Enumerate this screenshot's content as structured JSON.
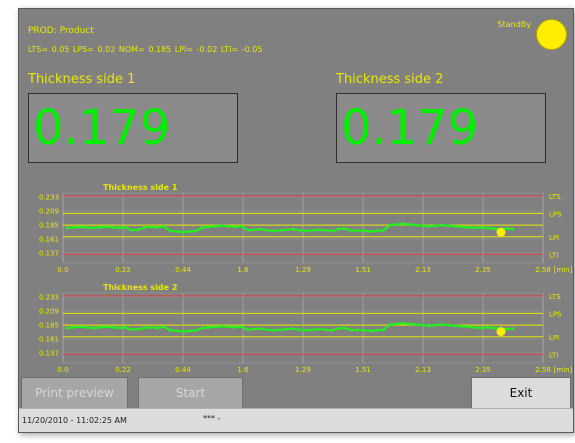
{
  "header": {
    "product": "PROD: Product",
    "limits_line": "LTS= 0.05   LPS= 0.02   NOM= 0.185   LPI= -0.02   LTI= -0.05",
    "status": "StandBy",
    "status_color": "#ffee00"
  },
  "sides": [
    {
      "title": "Thickness side 1",
      "value": "0.179"
    },
    {
      "title": "Thickness side 2",
      "value": "0.179"
    }
  ],
  "chart_data": [
    {
      "type": "line",
      "title": "Thickness side 1",
      "x_ticks": [
        "0.0",
        "0.22",
        "0.44",
        "1.6",
        "1.29",
        "1.51",
        "2.13",
        "2.35",
        "2.58"
      ],
      "x_unit": "[min]",
      "y_ticks": [
        "0.233",
        "0.209",
        "0.185",
        "0.161",
        "0.137"
      ],
      "ylim": [
        0.12,
        0.24
      ],
      "ref_lines": [
        {
          "label": "LTS",
          "value": 0.235,
          "color": "#e04040"
        },
        {
          "label": "LPS",
          "value": 0.205,
          "color": "#e8e800"
        },
        {
          "label": "NOM",
          "value": 0.185,
          "color": "#e8e800"
        },
        {
          "label": "LPI",
          "value": 0.165,
          "color": "#e8e800"
        },
        {
          "label": "LTI",
          "value": 0.135,
          "color": "#e04040"
        }
      ],
      "series": [
        {
          "values": [
            0.18,
            0.181,
            0.182,
            0.181,
            0.18,
            0.181,
            0.182,
            0.181,
            0.18,
            0.181,
            0.176,
            0.177,
            0.181,
            0.182,
            0.181,
            0.183,
            0.175,
            0.174,
            0.173,
            0.174,
            0.175,
            0.181,
            0.182,
            0.183,
            0.184,
            0.183,
            0.182,
            0.183,
            0.176,
            0.177,
            0.178,
            0.176,
            0.175,
            0.176,
            0.177,
            0.178,
            0.176,
            0.175,
            0.176,
            0.177,
            0.176,
            0.175,
            0.178,
            0.179,
            0.175,
            0.176,
            0.175,
            0.174,
            0.175,
            0.176,
            0.185,
            0.186,
            0.187,
            0.186,
            0.185,
            0.184,
            0.183,
            0.184,
            0.185,
            0.184,
            0.183,
            0.182,
            0.181,
            0.18,
            0.181,
            0.18,
            0.179,
            0.178,
            0.179,
            0.178
          ]
        }
      ]
    },
    {
      "type": "line",
      "title": "Thickness side 2",
      "x_ticks": [
        "0.0",
        "0.22",
        "0.44",
        "1.6",
        "1.29",
        "1.51",
        "2.13",
        "2.35",
        "2.58"
      ],
      "x_unit": "[min]",
      "y_ticks": [
        "0.233",
        "0.209",
        "0.185",
        "0.161",
        "0.137"
      ],
      "ylim": [
        0.12,
        0.24
      ],
      "ref_lines": [
        {
          "label": "LTS",
          "value": 0.235,
          "color": "#e04040"
        },
        {
          "label": "LPS",
          "value": 0.205,
          "color": "#e8e800"
        },
        {
          "label": "NOM",
          "value": 0.185,
          "color": "#e8e800"
        },
        {
          "label": "LPI",
          "value": 0.165,
          "color": "#e8e800"
        },
        {
          "label": "LTI",
          "value": 0.135,
          "color": "#e04040"
        }
      ],
      "series": [
        {
          "values": [
            0.18,
            0.181,
            0.182,
            0.181,
            0.18,
            0.181,
            0.182,
            0.181,
            0.18,
            0.181,
            0.177,
            0.178,
            0.18,
            0.181,
            0.18,
            0.182,
            0.176,
            0.175,
            0.174,
            0.175,
            0.176,
            0.18,
            0.181,
            0.182,
            0.183,
            0.182,
            0.181,
            0.182,
            0.177,
            0.178,
            0.179,
            0.177,
            0.176,
            0.177,
            0.178,
            0.179,
            0.177,
            0.176,
            0.177,
            0.178,
            0.177,
            0.176,
            0.179,
            0.18,
            0.176,
            0.177,
            0.176,
            0.175,
            0.176,
            0.177,
            0.186,
            0.187,
            0.188,
            0.187,
            0.186,
            0.185,
            0.184,
            0.185,
            0.186,
            0.185,
            0.184,
            0.183,
            0.182,
            0.181,
            0.18,
            0.181,
            0.18,
            0.179,
            0.178,
            0.179
          ]
        }
      ]
    }
  ],
  "buttons": {
    "print_preview": "Print preview",
    "start": "Start",
    "exit": "Exit"
  },
  "statusbar": {
    "datetime": "11/20/2010  -  11:02:25 AM",
    "info": "*** -"
  }
}
